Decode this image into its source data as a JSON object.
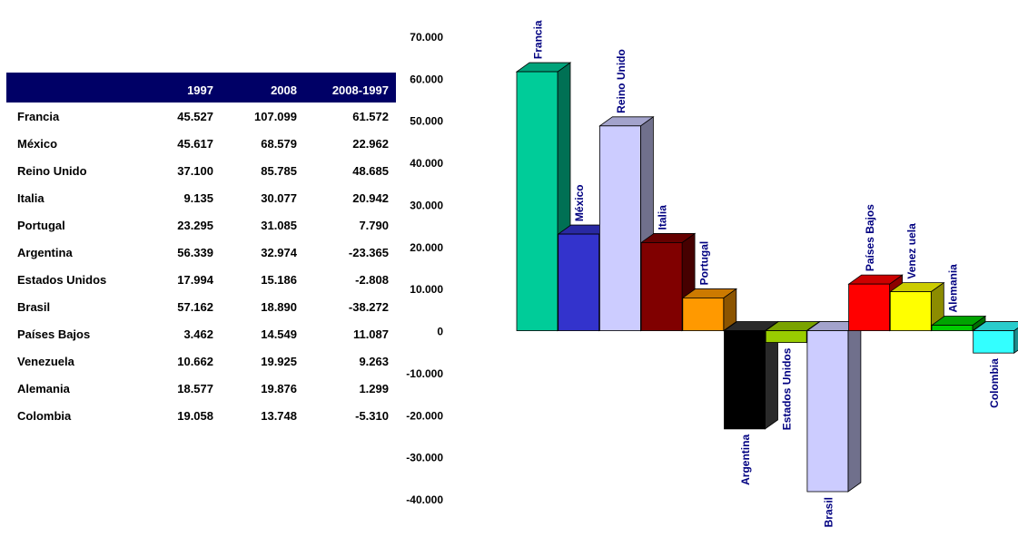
{
  "table": {
    "headers": [
      "",
      "1997",
      "2008",
      "2008-1997"
    ],
    "rows": [
      [
        "Francia",
        "45.527",
        "107.099",
        "61.572"
      ],
      [
        "México",
        "45.617",
        "68.579",
        "22.962"
      ],
      [
        "Reino Unido",
        "37.100",
        "85.785",
        "48.685"
      ],
      [
        "Italia",
        "9.135",
        "30.077",
        "20.942"
      ],
      [
        "Portugal",
        "23.295",
        "31.085",
        "7.790"
      ],
      [
        "Argentina",
        "56.339",
        "32.974",
        "-23.365"
      ],
      [
        "Estados Unidos",
        "17.994",
        "15.186",
        "-2.808"
      ],
      [
        "Brasil",
        "57.162",
        "18.890",
        "-38.272"
      ],
      [
        "Países Bajos",
        "3.462",
        "14.549",
        "11.087"
      ],
      [
        "Venezuela",
        "10.662",
        "19.925",
        "9.263"
      ],
      [
        "Alemania",
        "18.577",
        "19.876",
        "1.299"
      ],
      [
        "Colombia",
        "19.058",
        "13.748",
        "-5.310"
      ]
    ]
  },
  "chart_data": {
    "type": "bar",
    "categories": [
      "Francia",
      "México",
      "Reino Unido",
      "Italia",
      "Portugal",
      "Argentina",
      "Estados Unidos",
      "Brasil",
      "Países Bajos",
      "Venezuela",
      "Alemania",
      "Colombia"
    ],
    "category_labels": [
      "Francia",
      "México",
      "Reino Unido",
      "Italia",
      "Portugal",
      "Argentina",
      "Estados Unidos",
      "Brasil",
      "Países Bajos",
      "Venez uela",
      "Alemania",
      "Colombia"
    ],
    "values": [
      61572,
      22962,
      48685,
      20942,
      7790,
      -23365,
      -2808,
      -38272,
      11087,
      9263,
      1299,
      -5310
    ],
    "colors": [
      "#00CC99",
      "#3333CC",
      "#CCCCFF",
      "#800000",
      "#FF9900",
      "#000000",
      "#99CC00",
      "#CCCCFF",
      "#FF0000",
      "#FFFF00",
      "#00CC00",
      "#33FFFF"
    ],
    "ylim": [
      -40000,
      70000
    ],
    "yticks": [
      70000,
      60000,
      50000,
      40000,
      30000,
      20000,
      10000,
      0,
      -10000,
      -20000,
      -30000,
      -40000
    ],
    "ytick_labels": [
      "70.000",
      "60.000",
      "50.000",
      "40.000",
      "30.000",
      "20.000",
      "10.000",
      "0",
      "-10.000",
      "-20.000",
      "-30.000",
      "-40.000"
    ],
    "label_color": "#000080",
    "grid": false,
    "legend": "none"
  }
}
